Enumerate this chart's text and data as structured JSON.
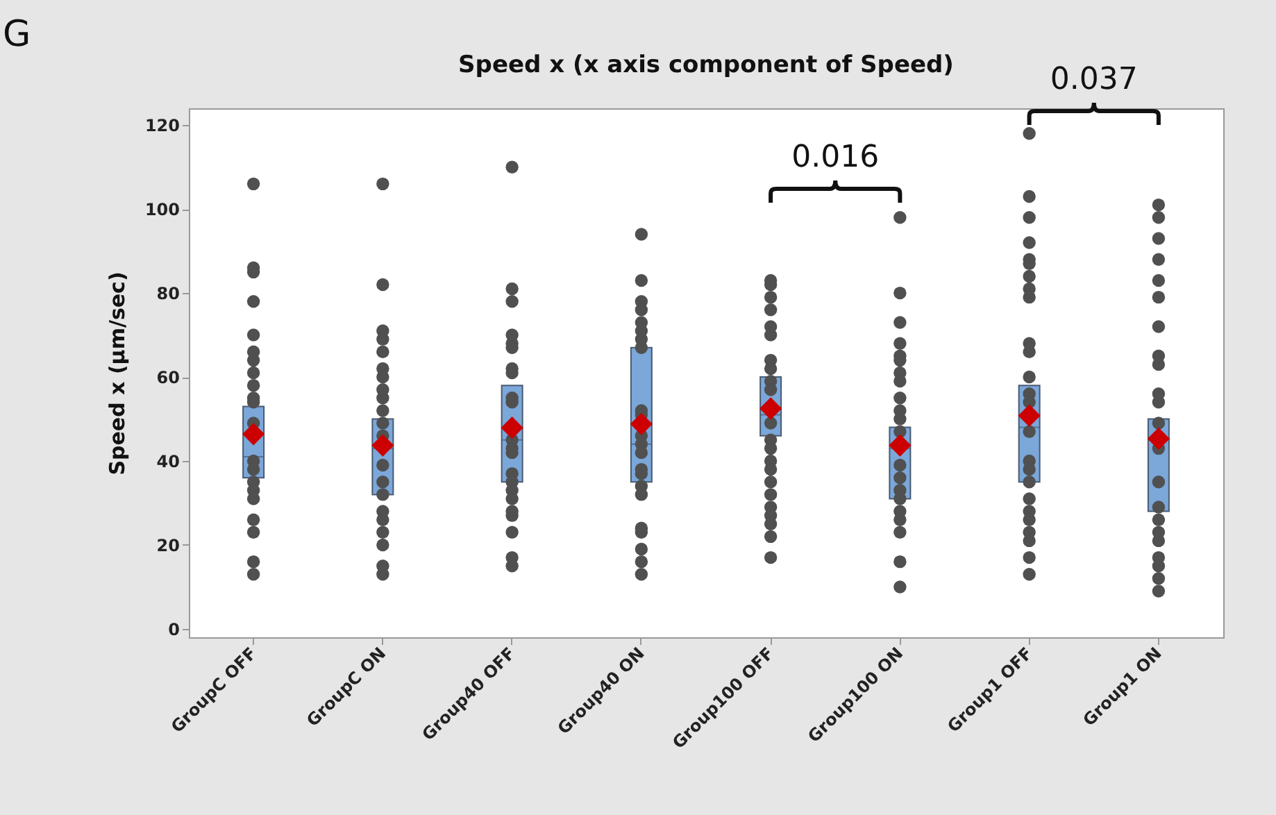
{
  "chart_data": {
    "type": "box",
    "title": "Speed x (x axis component of Speed)",
    "ylabel": "Speed x (µm/sec)",
    "categories": [
      "GroupC OFF",
      "GroupC ON",
      "Group40 OFF",
      "Group40 ON",
      "Group100 OFF",
      "Group100 ON",
      "Group1 OFF",
      "Group1 ON"
    ],
    "ylim": [
      -2,
      124
    ],
    "yticks": [
      0,
      20,
      40,
      60,
      80,
      100,
      120
    ],
    "grid": false,
    "annotations": [
      "G",
      "0.016",
      "0.037"
    ],
    "series": [
      {
        "type": "box",
        "color": "#7ba7d9",
        "boxes": [
          {
            "low": 36,
            "q1": 36,
            "median": 41,
            "q3": 53,
            "high": 53,
            "mean": 46.4
          },
          {
            "low": 32,
            "q1": 32,
            "median": 43,
            "q3": 50,
            "high": 50,
            "mean": 43.7
          },
          {
            "low": 35,
            "q1": 35,
            "median": 45,
            "q3": 58,
            "high": 58,
            "mean": 47.9
          },
          {
            "low": 35,
            "q1": 35,
            "median": 44,
            "q3": 67,
            "high": 67,
            "mean": 48.8
          },
          {
            "low": 46,
            "q1": 46,
            "median": 51,
            "q3": 60,
            "high": 60,
            "mean": 52.5
          },
          {
            "low": 31,
            "q1": 31,
            "median": 43,
            "q3": 48,
            "high": 48,
            "mean": 43.7
          },
          {
            "low": 35,
            "q1": 35,
            "median": 48,
            "q3": 58,
            "high": 58,
            "mean": 50.8
          },
          {
            "low": 28,
            "q1": 28,
            "median": 45,
            "q3": 50,
            "high": 50,
            "mean": 45.3
          }
        ]
      },
      {
        "type": "scatter",
        "color": "#505050",
        "marker": "circle",
        "x": [
          "GroupC OFF",
          "GroupC OFF",
          "GroupC OFF",
          "GroupC OFF",
          "GroupC OFF",
          "GroupC OFF",
          "GroupC OFF",
          "GroupC OFF",
          "GroupC OFF",
          "GroupC OFF",
          "GroupC OFF",
          "GroupC OFF",
          "GroupC OFF",
          "GroupC OFF",
          "GroupC OFF",
          "GroupC OFF",
          "GroupC OFF",
          "GroupC OFF",
          "GroupC OFF",
          "GroupC OFF",
          "GroupC OFF",
          "GroupC OFF",
          "GroupC ON",
          "GroupC ON",
          "GroupC ON",
          "GroupC ON",
          "GroupC ON",
          "GroupC ON",
          "GroupC ON",
          "GroupC ON",
          "GroupC ON",
          "GroupC ON",
          "GroupC ON",
          "GroupC ON",
          "GroupC ON",
          "GroupC ON",
          "GroupC ON",
          "GroupC ON",
          "GroupC ON",
          "GroupC ON",
          "GroupC ON",
          "GroupC ON",
          "GroupC ON",
          "GroupC ON",
          "Group40 OFF",
          "Group40 OFF",
          "Group40 OFF",
          "Group40 OFF",
          "Group40 OFF",
          "Group40 OFF",
          "Group40 OFF",
          "Group40 OFF",
          "Group40 OFF",
          "Group40 OFF",
          "Group40 OFF",
          "Group40 OFF",
          "Group40 OFF",
          "Group40 OFF",
          "Group40 OFF",
          "Group40 OFF",
          "Group40 OFF",
          "Group40 OFF",
          "Group40 OFF",
          "Group40 OFF",
          "Group40 OFF",
          "Group40 OFF",
          "Group40 OFF",
          "Group40 ON",
          "Group40 ON",
          "Group40 ON",
          "Group40 ON",
          "Group40 ON",
          "Group40 ON",
          "Group40 ON",
          "Group40 ON",
          "Group40 ON",
          "Group40 ON",
          "Group40 ON",
          "Group40 ON",
          "Group40 ON",
          "Group40 ON",
          "Group40 ON",
          "Group40 ON",
          "Group40 ON",
          "Group40 ON",
          "Group40 ON",
          "Group40 ON",
          "Group40 ON",
          "Group40 ON",
          "Group100 OFF",
          "Group100 OFF",
          "Group100 OFF",
          "Group100 OFF",
          "Group100 OFF",
          "Group100 OFF",
          "Group100 OFF",
          "Group100 OFF",
          "Group100 OFF",
          "Group100 OFF",
          "Group100 OFF",
          "Group100 OFF",
          "Group100 OFF",
          "Group100 OFF",
          "Group100 OFF",
          "Group100 OFF",
          "Group100 OFF",
          "Group100 OFF",
          "Group100 OFF",
          "Group100 OFF",
          "Group100 OFF",
          "Group100 OFF",
          "Group100 OFF",
          "Group100 ON",
          "Group100 ON",
          "Group100 ON",
          "Group100 ON",
          "Group100 ON",
          "Group100 ON",
          "Group100 ON",
          "Group100 ON",
          "Group100 ON",
          "Group100 ON",
          "Group100 ON",
          "Group100 ON",
          "Group100 ON",
          "Group100 ON",
          "Group100 ON",
          "Group100 ON",
          "Group100 ON",
          "Group100 ON",
          "Group100 ON",
          "Group100 ON",
          "Group100 ON",
          "Group100 ON",
          "Group1 OFF",
          "Group1 OFF",
          "Group1 OFF",
          "Group1 OFF",
          "Group1 OFF",
          "Group1 OFF",
          "Group1 OFF",
          "Group1 OFF",
          "Group1 OFF",
          "Group1 OFF",
          "Group1 OFF",
          "Group1 OFF",
          "Group1 OFF",
          "Group1 OFF",
          "Group1 OFF",
          "Group1 OFF",
          "Group1 OFF",
          "Group1 OFF",
          "Group1 OFF",
          "Group1 OFF",
          "Group1 OFF",
          "Group1 OFF",
          "Group1 OFF",
          "Group1 OFF",
          "Group1 OFF",
          "Group1 ON",
          "Group1 ON",
          "Group1 ON",
          "Group1 ON",
          "Group1 ON",
          "Group1 ON",
          "Group1 ON",
          "Group1 ON",
          "Group1 ON",
          "Group1 ON",
          "Group1 ON",
          "Group1 ON",
          "Group1 ON",
          "Group1 ON",
          "Group1 ON",
          "Group1 ON",
          "Group1 ON",
          "Group1 ON",
          "Group1 ON",
          "Group1 ON",
          "Group1 ON",
          "Group1 ON",
          "Group1 ON"
        ],
        "values": [
          106,
          86,
          85,
          78,
          70,
          66,
          64,
          61,
          58,
          55,
          54,
          49,
          null,
          40,
          38,
          35,
          33,
          31,
          26,
          23,
          16,
          13,
          106,
          82,
          71,
          69,
          66,
          62,
          60,
          57,
          55,
          52,
          49,
          46,
          null,
          39,
          35,
          32,
          28,
          26,
          23,
          20,
          15,
          13,
          110,
          81,
          78,
          70,
          68,
          67,
          62,
          61,
          55,
          54,
          null,
          45,
          43,
          42,
          37,
          35,
          33,
          31,
          28,
          27,
          23,
          17,
          15,
          94,
          83,
          78,
          76,
          73,
          71,
          69,
          67,
          52,
          51,
          46,
          44,
          42,
          38,
          37,
          34,
          32,
          24,
          23,
          19,
          16,
          13,
          83,
          82,
          79,
          76,
          72,
          70,
          64,
          62,
          59,
          57,
          null,
          49,
          45,
          43,
          40,
          38,
          35,
          32,
          29,
          27,
          25,
          22,
          17,
          98,
          80,
          73,
          68,
          65,
          64,
          61,
          59,
          55,
          52,
          50,
          47,
          null,
          39,
          36,
          33,
          31,
          28,
          26,
          23,
          16,
          10,
          118,
          103,
          98,
          92,
          88,
          87,
          84,
          81,
          79,
          68,
          66,
          60,
          56,
          54,
          47,
          40,
          38,
          35,
          31,
          28,
          26,
          23,
          21,
          17,
          13,
          101,
          98,
          93,
          88,
          83,
          79,
          72,
          65,
          63,
          56,
          54,
          49,
          null,
          43,
          35,
          29,
          26,
          23,
          21,
          17,
          15,
          12,
          9
        ]
      }
    ]
  }
}
